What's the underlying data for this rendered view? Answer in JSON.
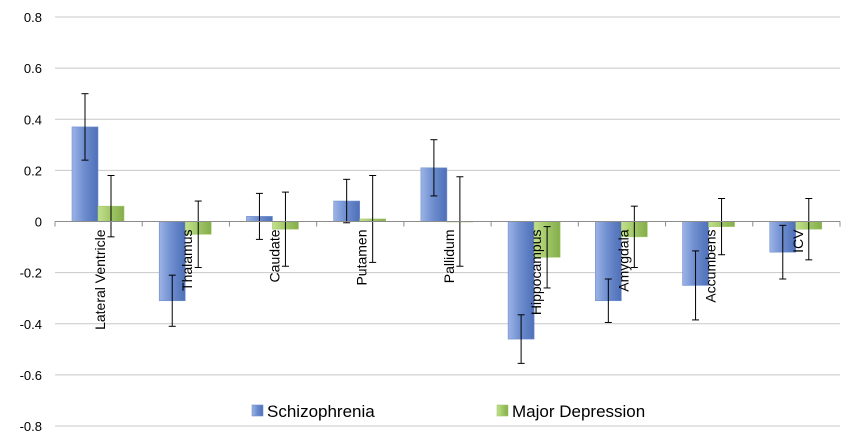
{
  "chart_data": {
    "type": "bar",
    "categories": [
      "Lateral Ventricle",
      "Thalamus",
      "Caudate",
      "Putamen",
      "Pallidum",
      "Hippocampus",
      "Amygdala",
      "Accumbens",
      "ICV"
    ],
    "series": [
      {
        "name": "Schizophrenia",
        "values": [
          0.37,
          -0.31,
          0.02,
          0.08,
          0.21,
          -0.46,
          -0.31,
          -0.25,
          -0.12
        ],
        "error": [
          0.13,
          0.1,
          0.09,
          0.085,
          0.11,
          0.095,
          0.085,
          0.135,
          0.105
        ],
        "color": "#6f8fd0"
      },
      {
        "name": "Major Depression",
        "values": [
          0.06,
          -0.05,
          -0.03,
          0.01,
          0.0,
          -0.14,
          -0.06,
          -0.02,
          -0.03
        ],
        "error": [
          0.12,
          0.13,
          0.145,
          0.17,
          0.175,
          0.12,
          0.12,
          0.11,
          0.12
        ],
        "color": "#a3c96a"
      }
    ],
    "y_ticks": [
      "0.8",
      "0.6",
      "0.4",
      "0.2",
      "0",
      "-0.2",
      "-0.4",
      "-0.6",
      "-0.8"
    ],
    "ylim": [
      -0.8,
      0.8
    ],
    "grid": true,
    "legend_position": "bottom"
  }
}
